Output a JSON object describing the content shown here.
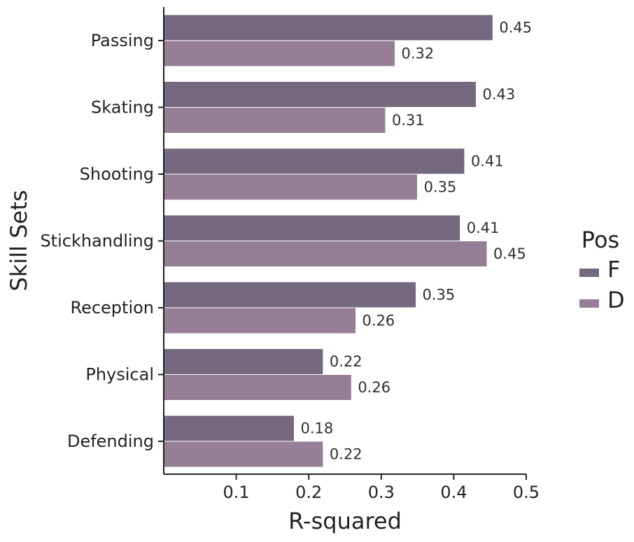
{
  "chart_data": {
    "type": "bar",
    "orientation": "horizontal",
    "categories": [
      "Passing",
      "Skating",
      "Shooting",
      "Stickhandling",
      "Reception",
      "Physical",
      "Defending"
    ],
    "series": [
      {
        "name": "F",
        "values": [
          0.454,
          0.431,
          0.415,
          0.409,
          0.348,
          0.22,
          0.18
        ],
        "labels": [
          "0.45",
          "0.43",
          "0.41",
          "0.41",
          "0.35",
          "0.22",
          "0.18"
        ],
        "color": "#75697f"
      },
      {
        "name": "D",
        "values": [
          0.319,
          0.306,
          0.35,
          0.446,
          0.265,
          0.259,
          0.22
        ],
        "labels": [
          "0.32",
          "0.31",
          "0.35",
          "0.45",
          "0.26",
          "0.26",
          "0.22"
        ],
        "color": "#967f96"
      }
    ],
    "xlabel": "R-squared",
    "ylabel": "Skill Sets",
    "xlim": [
      0,
      0.5
    ],
    "xticks": [
      0.1,
      0.2,
      0.3,
      0.4,
      0.5
    ],
    "xtick_labels": [
      "0.1",
      "0.2",
      "0.3",
      "0.4",
      "0.5"
    ],
    "grid": false,
    "legend": {
      "title": "Pos",
      "placement": "right",
      "entries": [
        "F",
        "D"
      ]
    }
  }
}
